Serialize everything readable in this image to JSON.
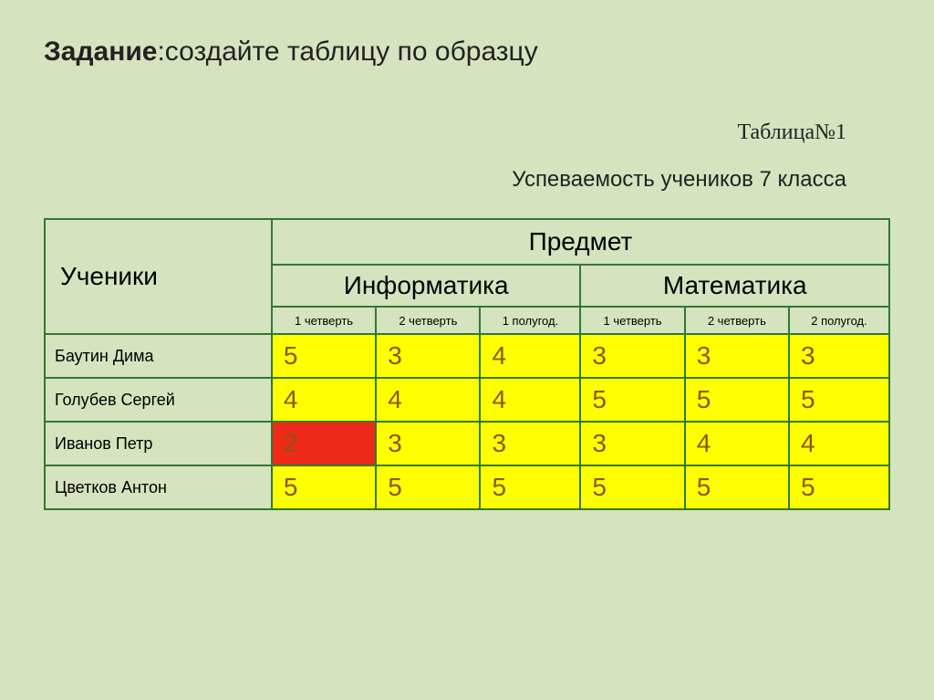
{
  "title": {
    "bold": "Задание",
    "rest": ":создайте таблицу по образцу"
  },
  "table_number": "Таблица№1",
  "subtitle": "Успеваемость учеников 7 класса",
  "table": {
    "type": "table",
    "border_color": "#2f7a2f",
    "header_bg": "#d5e3bf",
    "grade_bg_default": "#ffff00",
    "grade_bg_fail": "#ee2a1a",
    "grade_text_color": "#88570d",
    "students_label": "Ученики",
    "subject_label": "Предмет",
    "subjects": [
      "Информатика",
      "Математика"
    ],
    "periods": [
      "1 четверть",
      "2 четверть",
      "1 полугод.",
      "1 четверть",
      "2 четверть",
      "2 полугод."
    ],
    "header_fontsize": 28,
    "period_fontsize": 13,
    "name_fontsize": 18,
    "grade_fontsize": 28,
    "students": [
      {
        "name": "Баутин Дима",
        "grades": [
          5,
          3,
          4,
          3,
          3,
          3
        ],
        "fail_idx": []
      },
      {
        "name": "Голубев Сергей",
        "grades": [
          4,
          4,
          4,
          5,
          5,
          5
        ],
        "fail_idx": []
      },
      {
        "name": "Иванов Петр",
        "grades": [
          2,
          3,
          3,
          3,
          4,
          4
        ],
        "fail_idx": [
          0
        ]
      },
      {
        "name": "Цветков Антон",
        "grades": [
          5,
          5,
          5,
          5,
          5,
          5
        ],
        "fail_idx": []
      }
    ]
  }
}
